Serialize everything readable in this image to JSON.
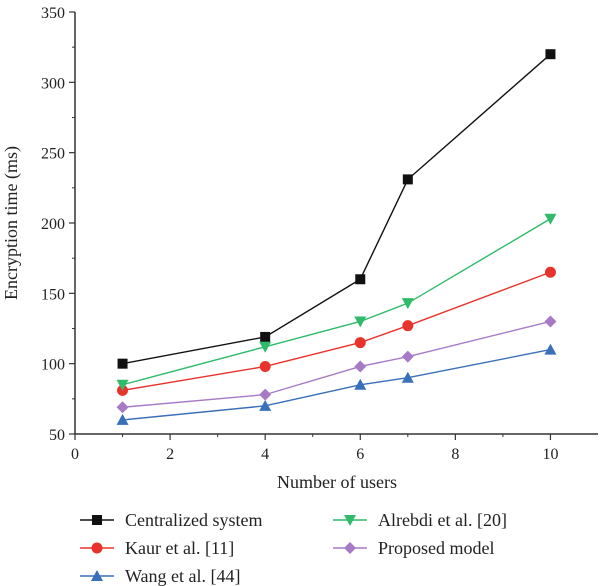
{
  "chart_data": {
    "type": "line",
    "xlabel": "Number of users",
    "ylabel": "Encryption time (ms)",
    "xlim": [
      0,
      11
    ],
    "ylim": [
      50,
      350
    ],
    "xticks": [
      0,
      2,
      4,
      6,
      8,
      10
    ],
    "yticks": [
      50,
      100,
      150,
      200,
      250,
      300,
      350
    ],
    "grid": false,
    "legend_position": "bottom",
    "x": [
      1,
      4,
      6,
      7,
      10
    ],
    "series": [
      {
        "name": "Centralized system",
        "values": [
          100,
          119,
          160,
          231,
          320
        ],
        "color": "#111111",
        "marker": "square"
      },
      {
        "name": "Kaur et al. [11]",
        "values": [
          81,
          98,
          115,
          127,
          165
        ],
        "color": "#e8332c",
        "marker": "circle"
      },
      {
        "name": "Wang et al. [44]",
        "values": [
          60,
          70,
          85,
          90,
          110
        ],
        "color": "#3a6fba",
        "marker": "triangle-up"
      },
      {
        "name": "Alrebdi et al. [20]",
        "values": [
          85,
          112,
          130,
          143,
          203
        ],
        "color": "#2fbb6a",
        "marker": "triangle-down"
      },
      {
        "name": "Proposed model",
        "values": [
          69,
          78,
          98,
          105,
          130
        ],
        "color": "#a77ac6",
        "marker": "diamond"
      }
    ]
  }
}
